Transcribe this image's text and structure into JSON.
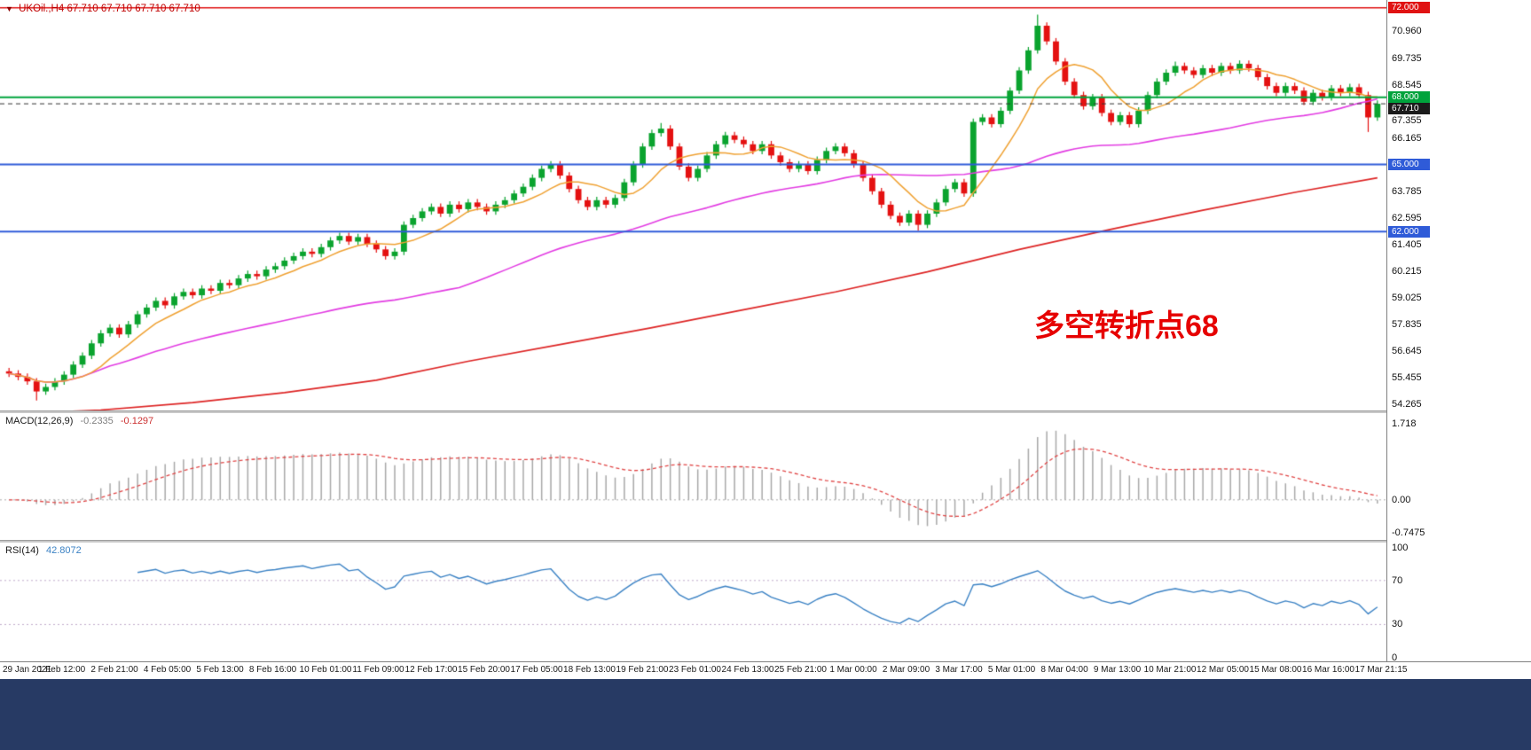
{
  "symbol_header": {
    "collapse_icon": "▼",
    "symbol": "UKOil.,H4",
    "ohlc": "67.710 67.710 67.710 67.710"
  },
  "annotation": {
    "text": "多空转折点68",
    "color": "#e60000"
  },
  "indicators": {
    "macd": {
      "label": "MACD(12,26,9)",
      "value_main": "-0.2335",
      "value_signal": "-0.1297"
    },
    "rsi": {
      "label": "RSI(14)",
      "value": "42.8072"
    }
  },
  "price_axis": {
    "tick_labels": [
      {
        "text": "70.960",
        "value": 70.96
      },
      {
        "text": "69.735",
        "value": 69.735
      },
      {
        "text": "68.545",
        "value": 68.545
      },
      {
        "text": "67.355",
        "value": 67.355
      },
      {
        "text": "66.165",
        "value": 66.165
      },
      {
        "text": "63.785",
        "value": 63.785
      },
      {
        "text": "62.595",
        "value": 62.595
      },
      {
        "text": "61.405",
        "value": 61.405
      },
      {
        "text": "60.215",
        "value": 60.215
      },
      {
        "text": "59.025",
        "value": 59.025
      },
      {
        "text": "57.835",
        "value": 57.835
      },
      {
        "text": "56.645",
        "value": 56.645
      },
      {
        "text": "55.455",
        "value": 55.455
      },
      {
        "text": "54.265",
        "value": 54.265
      }
    ],
    "badges": [
      {
        "text": "72.000",
        "value": 72.0,
        "bg": "#e01212"
      },
      {
        "text": "68.000",
        "value": 68.0,
        "bg": "#00a33c"
      },
      {
        "text": "67.710",
        "value": 67.71,
        "bg": "#1b1b1b"
      },
      {
        "text": "65.000",
        "value": 65.0,
        "bg": "#2f5bd8"
      },
      {
        "text": "62.000",
        "value": 62.0,
        "bg": "#2f5bd8"
      }
    ]
  },
  "macd_axis": [
    {
      "text": "1.718",
      "value": 1.718
    },
    {
      "text": "0.00",
      "value": 0
    },
    {
      "text": "-0.7475",
      "value": -0.7475
    }
  ],
  "rsi_axis": [
    {
      "text": "100",
      "value": 100
    },
    {
      "text": "70",
      "value": 70
    },
    {
      "text": "30",
      "value": 30
    },
    {
      "text": "0",
      "value": 0
    }
  ],
  "time_axis": {
    "labels": [
      "29 Jan 2021",
      "1 Feb 12:00",
      "2 Feb 21:00",
      "4 Feb 05:00",
      "5 Feb 13:00",
      "8 Feb 16:00",
      "10 Feb 01:00",
      "11 Feb 09:00",
      "12 Feb 17:00",
      "15 Feb 20:00",
      "17 Feb 05:00",
      "18 Feb 13:00",
      "19 Feb 21:00",
      "23 Feb 01:00",
      "24 Feb 13:00",
      "25 Feb 21:00",
      "1 Mar 00:00",
      "2 Mar 09:00",
      "3 Mar 17:00",
      "5 Mar 01:00",
      "8 Mar 04:00",
      "9 Mar 13:00",
      "10 Mar 21:00",
      "12 Mar 05:00",
      "15 Mar 08:00",
      "16 Mar 16:00",
      "17 Mar 21:15"
    ]
  },
  "colors": {
    "up_candle": "#0aa32e",
    "down_candle": "#e41111",
    "orange_ma": "#efa132",
    "magenta_ma": "#e23ce2",
    "red_ma": "#dd2424",
    "macd_bar": "#a8a8a8",
    "macd_signal": "#e04545",
    "rsi_line": "#3b82c4",
    "rsi_guide": "#c0aacb",
    "zero_line": "#aaaaaa",
    "footer": "#273a64",
    "symbol_text": "#c00000"
  },
  "chart_data": [
    {
      "type": "candlestick",
      "title": "UKOil H4",
      "timeframe": "H4",
      "ylim": [
        54.0,
        72.35
      ],
      "first_open": 55.75,
      "default_wick": 0.15,
      "closes": [
        55.65,
        55.5,
        55.3,
        54.85,
        55.05,
        55.3,
        55.6,
        56.05,
        56.45,
        57.0,
        57.45,
        57.7,
        57.4,
        57.85,
        58.3,
        58.6,
        58.9,
        58.7,
        59.1,
        59.3,
        59.15,
        59.45,
        59.35,
        59.7,
        59.6,
        59.9,
        60.1,
        60.0,
        60.3,
        60.45,
        60.7,
        60.9,
        61.1,
        61.0,
        61.3,
        61.6,
        61.8,
        61.55,
        61.75,
        61.45,
        61.2,
        60.9,
        61.1,
        62.3,
        62.6,
        62.9,
        63.1,
        62.8,
        63.2,
        63.0,
        63.3,
        63.1,
        62.9,
        63.2,
        63.4,
        63.7,
        64.0,
        64.4,
        64.8,
        65.0,
        64.5,
        63.9,
        63.4,
        63.1,
        63.4,
        63.2,
        63.5,
        64.2,
        65.0,
        65.8,
        66.4,
        66.6,
        65.8,
        64.9,
        64.4,
        64.8,
        65.4,
        65.9,
        66.3,
        66.1,
        65.9,
        65.6,
        65.9,
        65.4,
        65.1,
        64.8,
        65.0,
        64.7,
        65.2,
        65.6,
        65.8,
        65.5,
        65.0,
        64.4,
        63.8,
        63.2,
        62.7,
        62.4,
        62.8,
        62.3,
        62.8,
        63.3,
        63.9,
        64.2,
        63.7,
        66.9,
        67.1,
        66.8,
        67.4,
        68.3,
        69.2,
        70.1,
        71.2,
        70.5,
        69.6,
        68.7,
        68.1,
        67.6,
        68.0,
        67.3,
        66.9,
        67.2,
        66.8,
        67.4,
        68.1,
        68.7,
        69.1,
        69.4,
        69.2,
        69.0,
        69.3,
        69.1,
        69.4,
        69.2,
        69.5,
        69.3,
        68.9,
        68.5,
        68.2,
        68.5,
        68.3,
        67.8,
        68.2,
        68.0,
        68.4,
        68.2,
        68.45,
        68.1,
        67.1,
        67.71
      ],
      "wick_overrides": {
        "3": {
          "low": 54.45
        },
        "43": {
          "low": 60.95
        },
        "59": {
          "high": 65.15
        },
        "71": {
          "high": 66.85
        },
        "99": {
          "low": 62.05
        },
        "105": {
          "low": 63.55
        },
        "112": {
          "high": 71.7
        },
        "127": {
          "high": 69.6
        },
        "148": {
          "low": 66.45
        }
      },
      "levels": [
        {
          "value": 72.0,
          "style": "solid",
          "color": "#e01212",
          "width": 1.5
        },
        {
          "value": 68.0,
          "style": "solid",
          "color": "#00a33c",
          "width": 2
        },
        {
          "value": 67.71,
          "style": "dash",
          "color": "#333333",
          "width": 1
        },
        {
          "value": 65.0,
          "style": "solid",
          "color": "#2f5bd8",
          "width": 2
        },
        {
          "value": 62.0,
          "style": "solid",
          "color": "#2f5bd8",
          "width": 2
        }
      ],
      "ma": {
        "orange_period": 8,
        "magenta_period": 50,
        "red_anchors": [
          [
            0,
            53.85
          ],
          [
            10,
            54.02
          ],
          [
            20,
            54.35
          ],
          [
            30,
            54.8
          ],
          [
            40,
            55.35
          ],
          [
            50,
            56.2
          ],
          [
            60,
            56.95
          ],
          [
            70,
            57.7
          ],
          [
            80,
            58.5
          ],
          [
            90,
            59.3
          ],
          [
            100,
            60.2
          ],
          [
            110,
            61.2
          ],
          [
            120,
            62.1
          ],
          [
            130,
            62.95
          ],
          [
            140,
            63.75
          ],
          [
            149,
            64.4
          ]
        ]
      }
    },
    {
      "type": "bar",
      "name": "MACD(12,26,9)",
      "derived_from": "candlestick closes (EMA12 - EMA26, signal EMA9)",
      "fast": 12,
      "slow": 26,
      "signal": 9,
      "current_values": [
        -0.2335,
        -0.1297
      ],
      "ylim": [
        -0.9,
        1.95
      ]
    },
    {
      "type": "line",
      "name": "RSI(14)",
      "derived_from": "candlestick closes (Wilder RSI)",
      "period": 14,
      "current_value": 42.8072,
      "guides": [
        70,
        30
      ],
      "ylim_view": [
        -3.5,
        104.5
      ]
    }
  ]
}
